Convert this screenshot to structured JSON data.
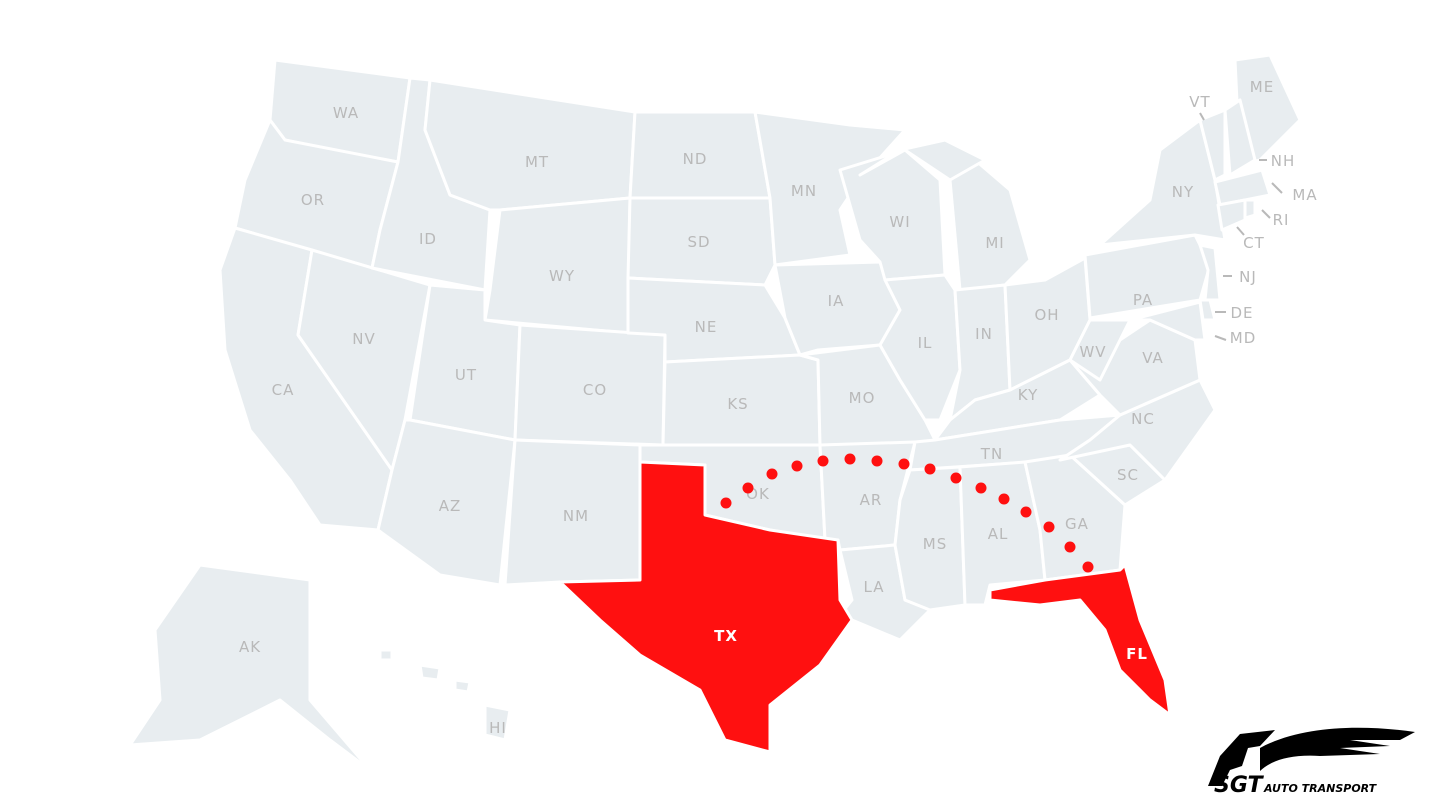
{
  "map": {
    "colors": {
      "state_fill": "#e8edf0",
      "highlight_fill": "#ff1010",
      "label": "#b9b9b9",
      "route_dot": "#ff1010",
      "border": "#ffffff"
    },
    "highlighted_states": [
      "TX",
      "FL"
    ],
    "route": {
      "from": "TX",
      "to": "FL",
      "style": "dotted"
    },
    "labels": {
      "WA": "WA",
      "OR": "OR",
      "CA": "CA",
      "NV": "NV",
      "ID": "ID",
      "MT": "MT",
      "WY": "WY",
      "UT": "UT",
      "AZ": "AZ",
      "CO": "CO",
      "NM": "NM",
      "ND": "ND",
      "SD": "SD",
      "NE": "NE",
      "KS": "KS",
      "OK": "OK",
      "TX": "TX",
      "MN": "MN",
      "IA": "IA",
      "MO": "MO",
      "AR": "AR",
      "LA": "LA",
      "WI": "WI",
      "IL": "IL",
      "MI": "MI",
      "IN": "IN",
      "OH": "OH",
      "KY": "KY",
      "TN": "TN",
      "MS": "MS",
      "AL": "AL",
      "GA": "GA",
      "FL": "FL",
      "SC": "SC",
      "NC": "NC",
      "VA": "VA",
      "WV": "WV",
      "PA": "PA",
      "NY": "NY",
      "VT": "VT",
      "NH": "NH",
      "ME": "ME",
      "MA": "MA",
      "RI": "RI",
      "CT": "CT",
      "NJ": "NJ",
      "DE": "DE",
      "MD": "MD",
      "AK": "AK",
      "HI": "HI"
    }
  },
  "logo": {
    "brand": "SGT",
    "tagline": "AUTO TRANSPORT"
  }
}
